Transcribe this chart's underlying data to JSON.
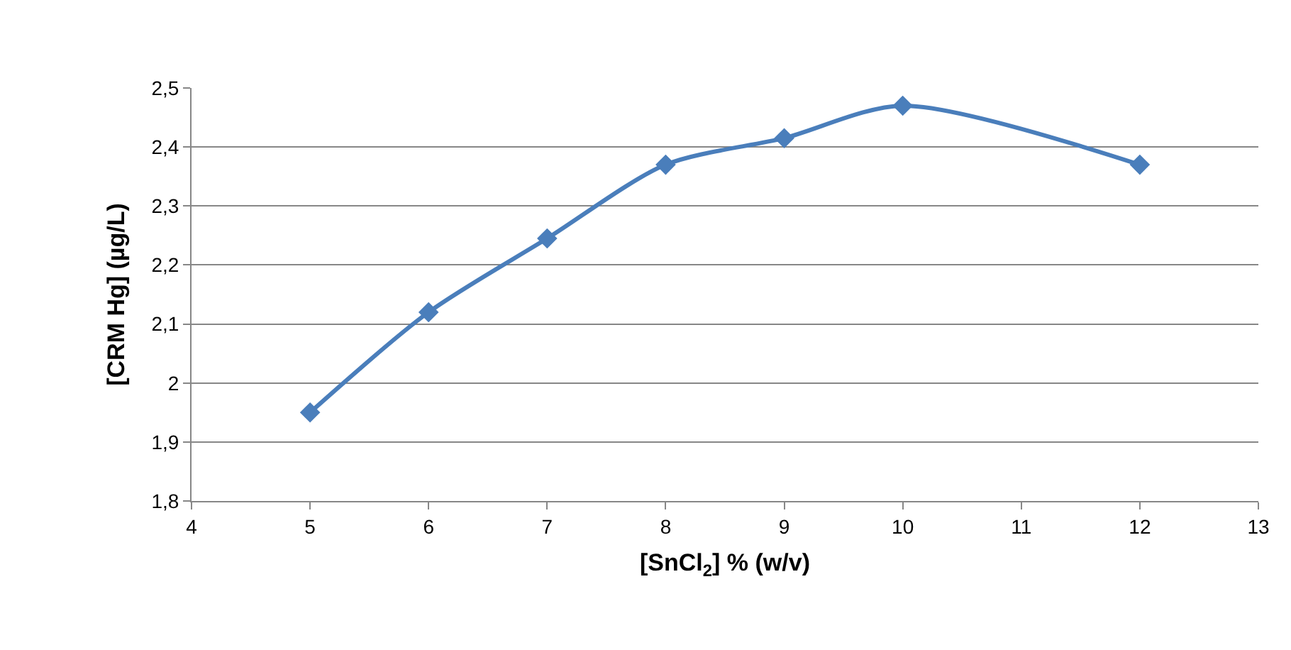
{
  "chart_data": {
    "type": "line",
    "xlabel": "[SnCl$_{2}$] % (w/v)",
    "ylabel": "[CRM Hg] (µg/L)",
    "x": [
      5,
      6,
      7,
      8,
      9,
      10,
      12
    ],
    "series": [
      {
        "color": "#4a7ebb",
        "values": [
          1.95,
          2.12,
          2.245,
          2.37,
          2.415,
          2.47,
          2.37
        ]
      }
    ],
    "xlim": [
      4,
      13
    ],
    "xticks": [
      4,
      5,
      6,
      7,
      8,
      9,
      10,
      11,
      12,
      13
    ],
    "ylim": [
      1.8,
      2.5
    ],
    "yticks": [
      {
        "value": 1.8,
        "label": "1,8"
      },
      {
        "value": 1.9,
        "label": "1,9"
      },
      2,
      {
        "value": 2.1,
        "label": "2,1"
      },
      {
        "value": 2.2,
        "label": "2,2"
      },
      {
        "value": 2.3,
        "label": "2,3"
      },
      {
        "value": 2.4,
        "label": "2,4"
      },
      {
        "value": 2.5,
        "label": "2,5"
      }
    ],
    "grid": "y",
    "marker": "diamond",
    "line_style": "solid"
  }
}
